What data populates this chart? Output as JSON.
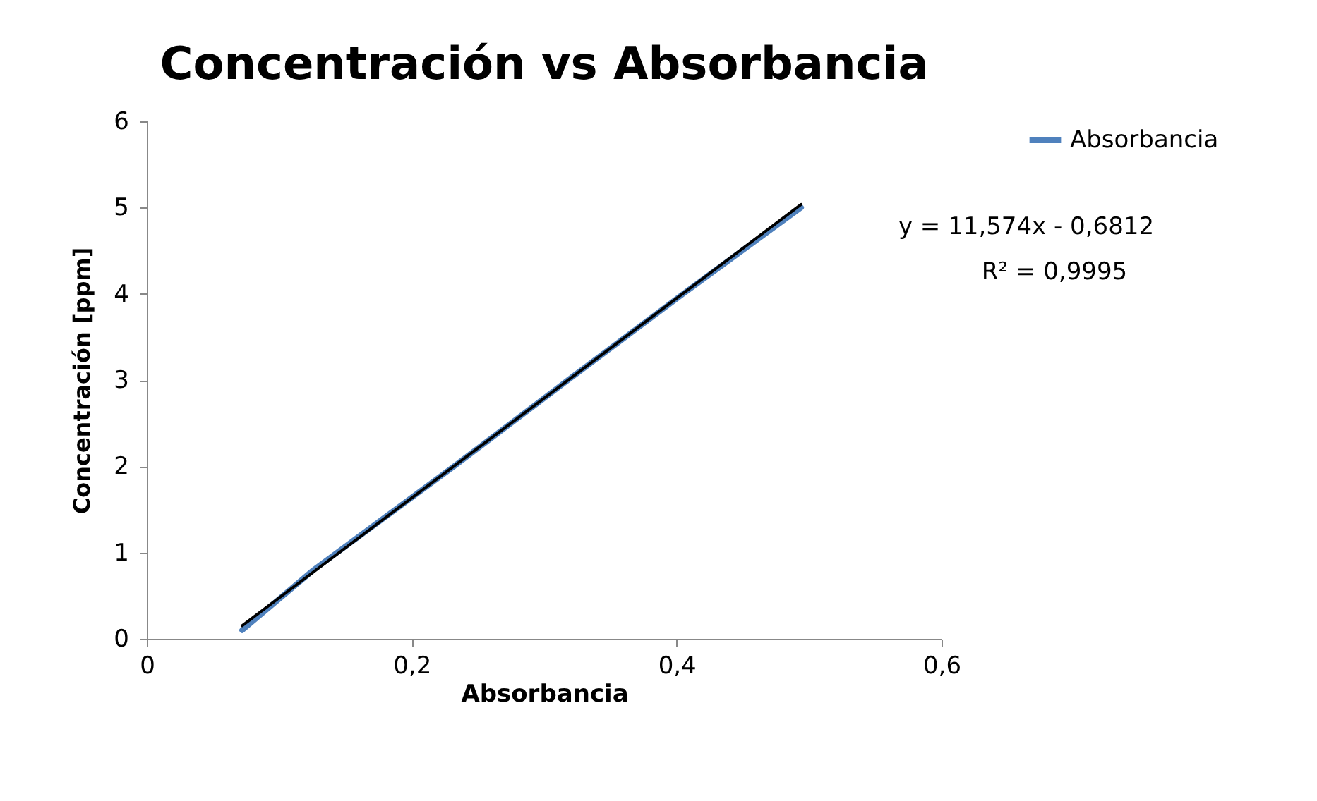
{
  "chart_data": {
    "type": "line",
    "title": "Concentración  vs Absorbancia",
    "xlabel": "Absorbancia",
    "ylabel": "Concentración  [ppm]",
    "series": [
      {
        "name": "Absorbancia",
        "color": "#4f81bd",
        "x": [
          0.072,
          0.126,
          0.232,
          0.318,
          0.405,
          0.494
        ],
        "values": [
          0.1,
          0.8,
          2,
          3,
          4,
          5
        ]
      },
      {
        "type": "line",
        "color": "#000000",
        "x": [
          0.072,
          0.494
        ],
        "values": [
          0.152,
          5.036
        ]
      }
    ],
    "xlim": [
      0,
      0.6
    ],
    "xticks": [
      0,
      {
        "value": 0.2,
        "label": "0,2"
      },
      {
        "value": 0.4,
        "label": "0,4"
      },
      {
        "value": 0.6,
        "label": "0,6"
      }
    ],
    "ylim": [
      0,
      6
    ],
    "yticks": [
      0,
      1,
      2,
      3,
      4,
      5,
      6
    ],
    "annotations": [
      "y = 11,574x - 0,6812",
      "R² = 0,9995"
    ],
    "grid": false,
    "legend": "right",
    "marker": "none",
    "line_style": "solid"
  }
}
